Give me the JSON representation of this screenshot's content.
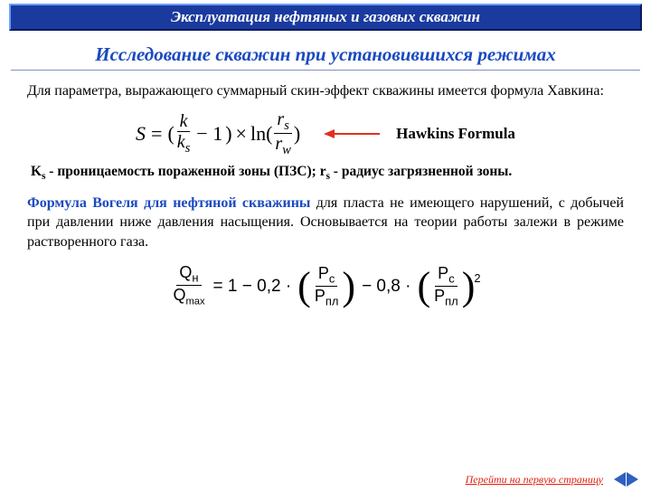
{
  "header": {
    "title": "Эксплуатация нефтяных и газовых скважин",
    "subtitle": "Исследование скважин при установившихся режимах"
  },
  "body": {
    "intro": "Для параметра, выражающего суммарный скин-эффект скважины имеется формула Хавкина:",
    "hawkins_label": "Hawkins Formula",
    "hawkins_formula": {
      "S": "S",
      "eq": "=",
      "lp": "(",
      "k": "k",
      "ks": "k",
      "ks_sub": "s",
      "minus1": "− 1",
      "rp": ")",
      "times": "×",
      "ln": "ln(",
      "rs": "r",
      "rs_sub": "s",
      "rw": "r",
      "rw_sub": "w",
      "rp2": ")"
    },
    "notes_ks_sym": "K",
    "notes_ks_sub": "s",
    "notes_ks_desc": " - проницаемость пораженной зоны (ПЗС); ",
    "notes_rs_sym": "r",
    "notes_rs_sub": "s",
    "notes_rs_desc": " - радиус загрязненной зоны.",
    "vogel_title": "Формула Вогеля для нефтяной скважины",
    "vogel_text": "   для пласта не имеющего нарушений, с добычей при давлении  ниже давления насыщения. Основыва­ется на теории работы залежи в режиме растворенного газа.",
    "vogel_formula": {
      "Qn": "Q",
      "Qn_sub": "н",
      "Qmax": "Q",
      "Qmax_sub": "max",
      "eq": "= 1 − 0,2 ·",
      "Pc": "P",
      "Pc_sub": "с",
      "Ppl": "P",
      "Ppl_sub": "пл",
      "mid": "− 0,8 ·",
      "pow2": "2"
    }
  },
  "footer": {
    "link": "Перейти на первую страницу"
  },
  "colors": {
    "header_bg": "#1a3a9e",
    "subtitle": "#1a4ac0",
    "arrow": "#e03020",
    "link": "#e02010",
    "nav": "#3060c0"
  }
}
